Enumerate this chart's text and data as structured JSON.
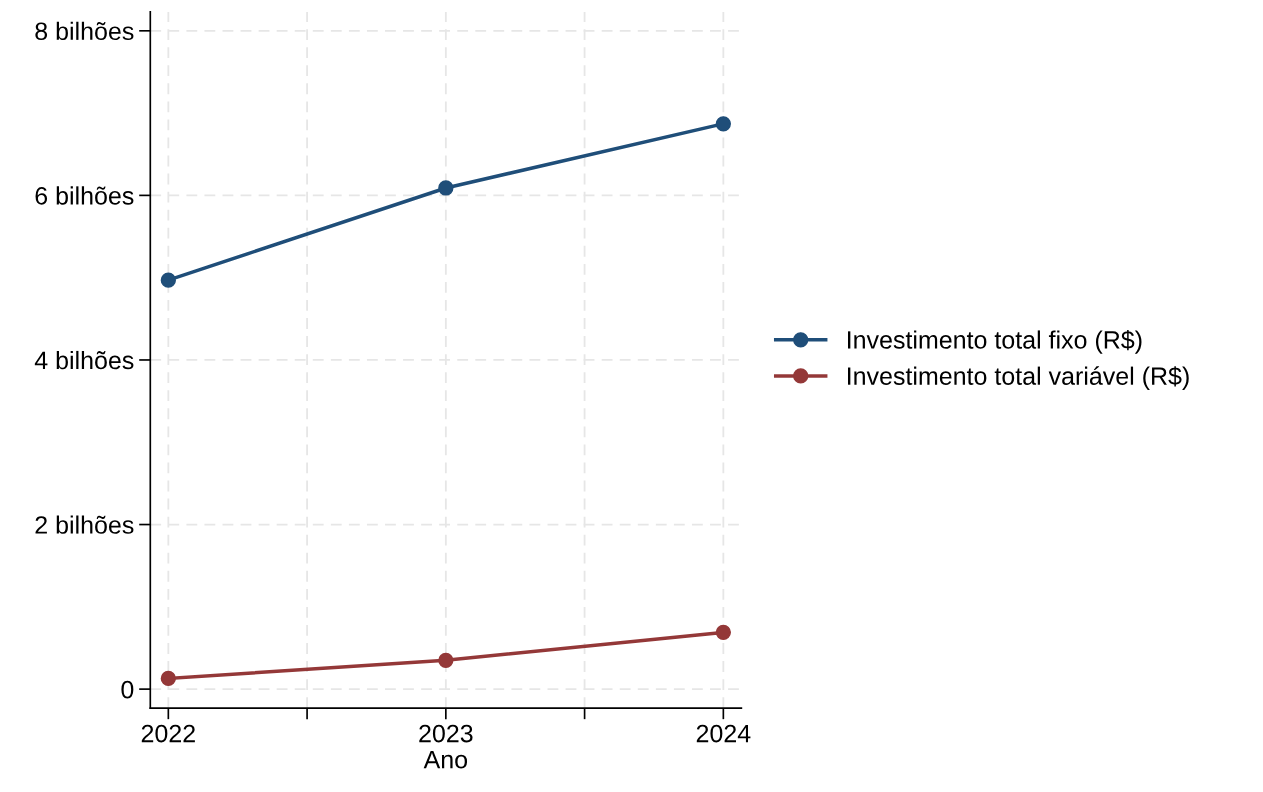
{
  "chart_data": {
    "type": "line",
    "xlabel": "Ano",
    "x": [
      2022,
      2023,
      2024
    ],
    "series": [
      {
        "name": "Investimento total fixo (R$)",
        "color": "#1f4e79",
        "values": [
          4.97,
          6.09,
          6.87
        ]
      },
      {
        "name": "Investimento total variável (R$)",
        "color": "#943838",
        "values": [
          0.13,
          0.35,
          0.69
        ]
      }
    ],
    "xlim": [
      2021.935,
      2024.065
    ],
    "xticks": [
      2022,
      {
        "value": 2022.5,
        "label": null
      },
      2023,
      {
        "value": 2023.5,
        "label": null
      },
      2024
    ],
    "ylim": [
      -0.23,
      8.23
    ],
    "yticks": [
      {
        "value": 0,
        "label": "0"
      },
      {
        "value": 2,
        "label": "2 bilhões"
      },
      {
        "value": 4,
        "label": "4 bilhões"
      },
      {
        "value": 6,
        "label": "6 bilhões"
      },
      {
        "value": 8,
        "label": "8 bilhões"
      }
    ],
    "grid": true,
    "legend": "right",
    "marker": "circle",
    "line_style": "solid"
  }
}
